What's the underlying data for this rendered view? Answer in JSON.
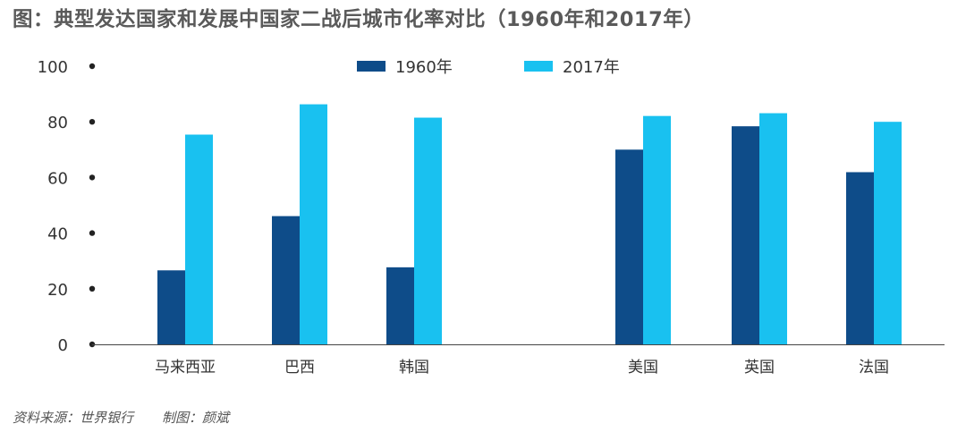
{
  "title": "图：典型发达国家和发展中国家二战后城市化率对比（1960年和2017年）",
  "chart_data": {
    "type": "bar",
    "title": "图：典型发达国家和发展中国家二战后城市化率对比（1960年和2017年）",
    "categories": [
      "马来西亚",
      "巴西",
      "韩国",
      "美国",
      "英国",
      "法国"
    ],
    "series": [
      {
        "name": "1960年",
        "color": "#0e4c89",
        "values": [
          26.6,
          46.1,
          27.7,
          70.0,
          78.4,
          61.9
        ]
      },
      {
        "name": "2017年",
        "color": "#19c1f0",
        "values": [
          75.4,
          86.3,
          81.5,
          82.1,
          83.1,
          80.0
        ]
      }
    ],
    "yticks": [
      0,
      20,
      40,
      60,
      80,
      100
    ],
    "ylim": [
      0,
      100
    ],
    "xlabel": "",
    "ylabel": "",
    "grid": false,
    "legend_position": "top-center"
  },
  "footer": {
    "source": "资料来源：世界银行",
    "author": "制图：颜斌"
  }
}
